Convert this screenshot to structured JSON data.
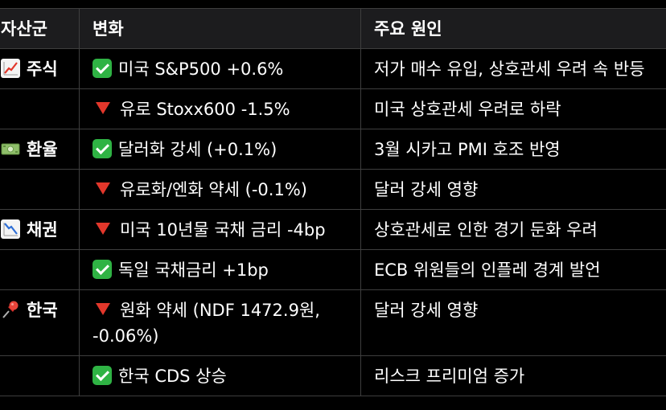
{
  "headers": {
    "category": "자산군",
    "change": "변화",
    "reason": "주요 원인"
  },
  "rows": [
    {
      "category": "주식",
      "category_icon": "chart-increasing-icon",
      "change_icon": "check-mark-icon",
      "change": "미국 S&P500 +0.6%",
      "reason": "저가 매수 유입, 상호관세 우려 속 반등"
    },
    {
      "category": "",
      "change_icon": "red-down-triangle-icon",
      "change": "유로 Stoxx600 -1.5%",
      "reason": "미국 상호관세 우려로 하락"
    },
    {
      "category": "환율",
      "category_icon": "dollar-banknote-icon",
      "change_icon": "check-mark-icon",
      "change": "달러화 강세 (+0.1%)",
      "reason": "3월 시카고 PMI 호조 반영"
    },
    {
      "category": "",
      "change_icon": "red-down-triangle-icon",
      "change": "유로화/엔화 약세 (-0.1%)",
      "reason": "달러 강세 영향"
    },
    {
      "category": "채권",
      "category_icon": "chart-decreasing-icon",
      "change_icon": "red-down-triangle-icon",
      "change": "미국 10년물 국채 금리 -4bp",
      "reason": "상호관세로 인한 경기 둔화 우려"
    },
    {
      "category": "",
      "change_icon": "check-mark-icon",
      "change": "독일 국채금리 +1bp",
      "reason": "ECB 위원들의 인플레 경계 발언"
    },
    {
      "category": "한국",
      "category_icon": "pushpin-icon",
      "change_icon": "red-down-triangle-icon",
      "change": "원화 약세 (NDF 1472.9원, -0.06%)",
      "reason": "달러 강세 영향"
    },
    {
      "category": "",
      "change_icon": "check-mark-icon",
      "change": "한국 CDS 상승",
      "reason": "리스크 프리미엄 증가"
    }
  ],
  "colors": {
    "background": "#000000",
    "header_background": "#1c1c1e",
    "border": "#3e3e3e",
    "check_green": "#2fb344",
    "down_red": "#e2372b"
  }
}
